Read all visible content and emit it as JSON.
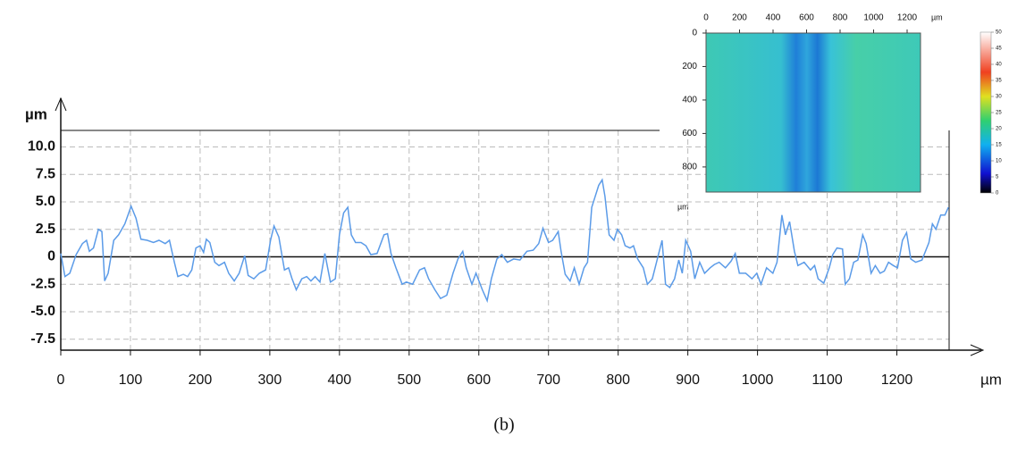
{
  "chart_data": [
    {
      "type": "line",
      "xlabel": "µm",
      "ylabel": "µm",
      "caption": "(b)",
      "grid": true,
      "xlim": [
        0,
        1275
      ],
      "ylim": [
        -8.5,
        11.5
      ],
      "xticks": [
        0,
        100,
        200,
        300,
        400,
        500,
        600,
        700,
        800,
        900,
        1000,
        1100,
        1200
      ],
      "yticks": [
        -7.5,
        {
          "value": -5,
          "label": "-5.0"
        },
        -2.5,
        0,
        2.5,
        {
          "value": 5,
          "label": "5.0"
        },
        7.5,
        {
          "value": 10,
          "label": "10.0"
        }
      ],
      "x": [
        0,
        6,
        13,
        22,
        31,
        37,
        41,
        47,
        54,
        59,
        63,
        68,
        76,
        83,
        92,
        101,
        108,
        115,
        124,
        133,
        141,
        150,
        156,
        163,
        168,
        176,
        182,
        188,
        194,
        200,
        205,
        209,
        214,
        221,
        227,
        235,
        241,
        249,
        256,
        264,
        269,
        277,
        285,
        294,
        301,
        306,
        313,
        321,
        327,
        332,
        338,
        346,
        353,
        359,
        365,
        372,
        379,
        387,
        394,
        400,
        406,
        412,
        417,
        423,
        431,
        438,
        445,
        454,
        464,
        469,
        474,
        481,
        490,
        496,
        505,
        515,
        522,
        528,
        537,
        545,
        554,
        563,
        570,
        577,
        582,
        590,
        596,
        605,
        612,
        618,
        626,
        633,
        641,
        650,
        659,
        669,
        678,
        686,
        692,
        700,
        706,
        714,
        718,
        724,
        731,
        737,
        744,
        751,
        756,
        762,
        767,
        772,
        777,
        781,
        787,
        794,
        799,
        805,
        810,
        817,
        822,
        828,
        836,
        842,
        849,
        855,
        863,
        868,
        874,
        881,
        887,
        892,
        897,
        904,
        910,
        917,
        924,
        932,
        938,
        945,
        954,
        962,
        968,
        974,
        983,
        992,
        999,
        1005,
        1013,
        1022,
        1028,
        1035,
        1040,
        1046,
        1053,
        1058,
        1067,
        1076,
        1082,
        1087,
        1095,
        1103,
        1108,
        1114,
        1122,
        1126,
        1132,
        1138,
        1144,
        1151,
        1156,
        1163,
        1169,
        1176,
        1182,
        1188,
        1195,
        1201,
        1208,
        1214,
        1220,
        1227,
        1236,
        1246,
        1251,
        1256,
        1263,
        1269,
        1274
      ],
      "series": [
        {
          "color": "#5b9be8",
          "values": [
            0.3,
            -1.8,
            -1.5,
            0.2,
            1.2,
            1.5,
            0.5,
            0.8,
            2.5,
            2.3,
            -2.2,
            -1.5,
            1.5,
            2,
            3,
            4.6,
            3.5,
            1.6,
            1.5,
            1.3,
            1.5,
            1.2,
            1.5,
            -0.5,
            -1.8,
            -1.6,
            -1.8,
            -1.2,
            0.8,
            1,
            0.4,
            1.6,
            1.3,
            -0.5,
            -0.8,
            -0.5,
            -1.5,
            -2.2,
            -1.5,
            0.1,
            -1.7,
            -2,
            -1.5,
            -1.2,
            1.5,
            2.8,
            1.8,
            -1.2,
            -1,
            -2,
            -3,
            -2,
            -1.8,
            -2.2,
            -1.8,
            -2.3,
            0.3,
            -2.3,
            -2,
            2,
            4,
            4.5,
            2,
            1.3,
            1.3,
            1,
            0.2,
            0.3,
            2,
            2.1,
            0.3,
            -1,
            -2.5,
            -2.3,
            -2.5,
            -1.2,
            -1,
            -2,
            -3,
            -3.8,
            -3.5,
            -1.5,
            -0.2,
            0.5,
            -1,
            -2.5,
            -1.5,
            -3,
            -4,
            -2,
            -0.2,
            0.2,
            -0.5,
            -0.2,
            -0.3,
            0.5,
            0.6,
            1.2,
            2.6,
            1.3,
            1.5,
            2.3,
            0.5,
            -1.6,
            -2.2,
            -1,
            -2.5,
            -1,
            -0.5,
            4.5,
            5.5,
            6.5,
            7,
            5.5,
            2,
            1.5,
            2.5,
            2,
            1,
            0.8,
            1,
            -0.2,
            -1,
            -2.5,
            -2,
            -0.5,
            1.5,
            -2.5,
            -2.8,
            -2,
            -0.3,
            -1.5,
            1.5,
            0.5,
            -2,
            -0.5,
            -1.5,
            -1,
            -0.7,
            -0.5,
            -1,
            -0.4,
            0.3,
            -1.5,
            -1.5,
            -2,
            -1.5,
            -2.5,
            -1,
            -1.5,
            -0.5,
            3.8,
            2,
            3.2,
            0.5,
            -0.8,
            -0.5,
            -1.2,
            -0.8,
            -2,
            -2.4,
            -1,
            0.2,
            0.8,
            0.7,
            -2.5,
            -2,
            -0.5,
            -0.3,
            2,
            1.2,
            -1.5,
            -0.8,
            -1.5,
            -1.3,
            -0.5,
            -0.8,
            -1,
            1.5,
            2.2,
            -0.2,
            -0.5,
            -0.3,
            1.3,
            3,
            2.5,
            3.8,
            3.8,
            4.5
          ]
        }
      ]
    },
    {
      "type": "heatmap",
      "xlabel": "µm",
      "ylabel": "µm",
      "xlim": [
        0,
        1280
      ],
      "ylim": [
        0,
        950
      ],
      "xticks": [
        0,
        200,
        400,
        600,
        800,
        1000,
        1200
      ],
      "yticks": [
        0,
        200,
        400,
        600,
        800
      ],
      "colorbar_lim": [
        0,
        50
      ],
      "colorbar_ticks": [
        0,
        5,
        10,
        15,
        20,
        25,
        30,
        35,
        40,
        45,
        50
      ]
    }
  ]
}
